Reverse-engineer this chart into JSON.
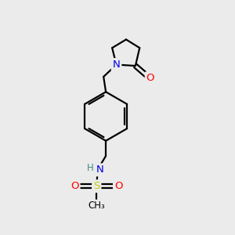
{
  "background_color": "#ebebeb",
  "atom_colors": {
    "C": "#000000",
    "N": "#0000ee",
    "O": "#ff0000",
    "S": "#cccc00",
    "H": "#448888"
  },
  "bond_color": "#000000",
  "bond_width": 1.6,
  "figsize": [
    3.0,
    3.0
  ],
  "dpi": 100
}
